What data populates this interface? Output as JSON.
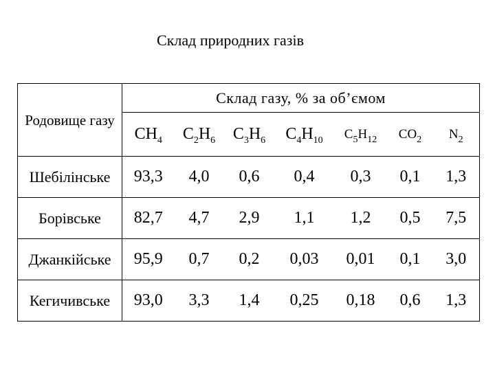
{
  "title": "Склад природних газів",
  "table": {
    "field_header": "Родовище газу",
    "composition_header": "Склад газу, % за об’ємом",
    "components": [
      {
        "base": "CH",
        "sub": "4",
        "rest": "",
        "sub2": "",
        "rest2": "",
        "sub3": "",
        "rest3": "",
        "sub4": "",
        "size": "big"
      },
      {
        "base": "C",
        "sub": "2",
        "rest": "H",
        "sub2": "6",
        "size": "big"
      },
      {
        "base": "C",
        "sub": "3",
        "rest": "H",
        "sub2": "6",
        "size": "big"
      },
      {
        "base": "C",
        "sub": "4",
        "rest": "H",
        "sub2": "10",
        "size": "big"
      },
      {
        "base": "C",
        "sub": "5",
        "rest": "H",
        "sub2": "12",
        "size": "small"
      },
      {
        "base": "CO",
        "sub": "2",
        "rest": "",
        "sub2": "",
        "size": "small"
      },
      {
        "base": "N",
        "sub": "2",
        "rest": "",
        "sub2": "",
        "size": "small"
      }
    ],
    "rows": [
      {
        "field": "Шебілінське",
        "values": [
          "93,3",
          "4,0",
          "0,6",
          "0,4",
          "0,3",
          "0,1",
          "1,3"
        ]
      },
      {
        "field": "Борівське",
        "values": [
          "82,7",
          "4,7",
          "2,9",
          "1,1",
          "1,2",
          "0,5",
          "7,5"
        ]
      },
      {
        "field": "Джанкійське",
        "values": [
          "95,9",
          "0,7",
          "0,2",
          "0,03",
          "0,01",
          "0,1",
          "3,0"
        ]
      },
      {
        "field": "Кегичивське",
        "values": [
          "93,0",
          "3,3",
          "1,4",
          "0,25",
          "0,18",
          "0,6",
          "1,3"
        ]
      }
    ]
  }
}
